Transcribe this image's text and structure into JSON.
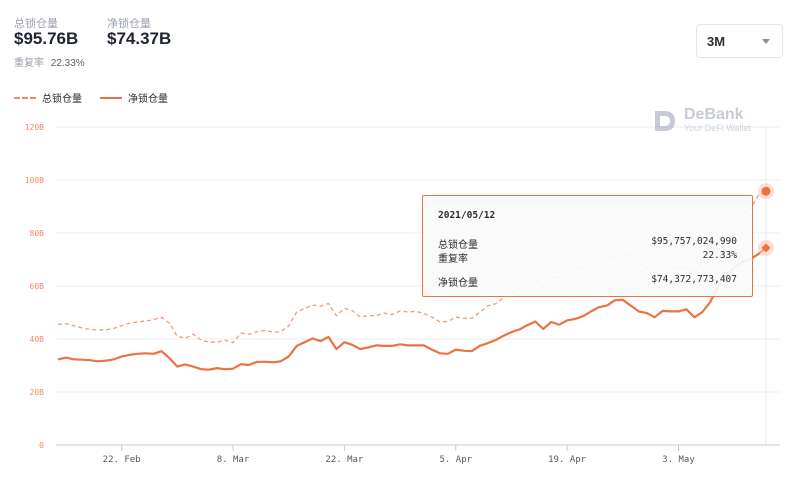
{
  "header": {
    "total_label": "总锁仓量",
    "total_value": "$95.76B",
    "net_label": "净锁仓量",
    "net_value": "$74.37B",
    "dup_label": "重复率",
    "dup_value": "22.33%"
  },
  "range_select": {
    "value": "3M",
    "icon": "chevron-down-icon"
  },
  "logo": {
    "name": "DeBank",
    "tagline": "Your DeFi Wallet"
  },
  "tooltip": {
    "date": "2021/05/12",
    "total_label": "总锁仓量",
    "total_value": "$95,757,024,990",
    "dup_label": "重复率",
    "dup_value": "22.33%",
    "net_label": "净锁仓量",
    "net_value": "$74,372,773,407"
  },
  "colors": {
    "accent": "#ea7243",
    "accent_light": "#ef8a66",
    "grid": "#eceef2",
    "tick": "#ef8a66"
  },
  "chart_data": {
    "type": "line",
    "ylim": [
      0,
      120
    ],
    "yticks": [
      0,
      20,
      40,
      60,
      80,
      100,
      120
    ],
    "ytick_labels": [
      "0",
      "20B",
      "40B",
      "60B",
      "80B",
      "100B",
      "120B"
    ],
    "x_ticks": [
      {
        "label": "22. Feb",
        "day": 15
      },
      {
        "label": "8. Mar",
        "day": 29
      },
      {
        "label": "22. Mar",
        "day": 43
      },
      {
        "label": "5. Apr",
        "day": 57
      },
      {
        "label": "19. Apr",
        "day": 71
      },
      {
        "label": "3. May",
        "day": 85
      }
    ],
    "x_range": [
      7,
      96
    ],
    "series": [
      {
        "name": "总锁仓量",
        "style": "dashed",
        "points": [
          [
            7,
            45.5
          ],
          [
            8,
            45.8
          ],
          [
            9,
            45
          ],
          [
            10,
            44.2
          ],
          [
            11,
            43.6
          ],
          [
            12,
            43.4
          ],
          [
            13,
            43.5
          ],
          [
            14,
            44
          ],
          [
            15,
            45
          ],
          [
            16,
            46
          ],
          [
            17,
            46.4
          ],
          [
            18,
            46.8
          ],
          [
            19,
            47.3
          ],
          [
            20,
            48.2
          ],
          [
            21,
            46
          ],
          [
            22,
            41
          ],
          [
            23,
            40.3
          ],
          [
            24,
            41.8
          ],
          [
            25,
            39.6
          ],
          [
            26,
            38.8
          ],
          [
            27,
            38.8
          ],
          [
            28,
            39.6
          ],
          [
            29,
            38.6
          ],
          [
            30,
            42.2
          ],
          [
            31,
            41.8
          ],
          [
            32,
            42.8
          ],
          [
            33,
            43.2
          ],
          [
            34,
            42.6
          ],
          [
            35,
            42.7
          ],
          [
            36,
            45
          ],
          [
            37,
            50.2
          ],
          [
            38,
            51.5
          ],
          [
            39,
            52.8
          ],
          [
            40,
            52.4
          ],
          [
            41,
            53.4
          ],
          [
            42,
            48.8
          ],
          [
            43,
            51.6
          ],
          [
            44,
            50.7
          ],
          [
            45,
            48.3
          ],
          [
            46,
            48.8
          ],
          [
            47,
            48.8
          ],
          [
            48,
            49.8
          ],
          [
            49,
            49.2
          ],
          [
            50,
            50.6
          ],
          [
            51,
            50.2
          ],
          [
            52,
            50.4
          ],
          [
            53,
            49.6
          ],
          [
            54,
            48.3
          ],
          [
            55,
            46.5
          ],
          [
            56,
            46.6
          ],
          [
            57,
            48.3
          ],
          [
            58,
            47.8
          ],
          [
            59,
            47.8
          ],
          [
            60,
            50
          ],
          [
            61,
            52.5
          ],
          [
            62,
            53.3
          ],
          [
            63,
            55.6
          ],
          [
            64,
            57.3
          ],
          [
            65,
            59.3
          ],
          [
            66,
            60.6
          ],
          [
            67,
            62.3
          ],
          [
            68,
            59.8
          ],
          [
            69,
            63.4
          ],
          [
            70,
            63.2
          ],
          [
            71,
            66
          ],
          [
            72,
            66.4
          ],
          [
            73,
            67
          ],
          [
            74,
            68.6
          ],
          [
            75,
            70.2
          ],
          [
            76,
            70.6
          ],
          [
            77,
            71
          ],
          [
            78,
            72
          ],
          [
            79,
            71.5
          ],
          [
            80,
            68.3
          ],
          [
            81,
            66.8
          ],
          [
            82,
            63
          ],
          [
            83,
            66.5
          ],
          [
            84,
            66.5
          ],
          [
            85,
            66.6
          ],
          [
            86,
            67.1
          ],
          [
            87,
            64.8
          ],
          [
            88,
            69
          ],
          [
            89,
            73.4
          ],
          [
            90,
            80
          ],
          [
            91,
            82
          ],
          [
            92,
            85
          ],
          [
            93,
            87
          ],
          [
            94,
            89
          ],
          [
            95,
            94
          ],
          [
            96,
            95.76
          ]
        ]
      },
      {
        "name": "净锁仓量",
        "style": "solid",
        "points": [
          [
            7,
            32.3
          ],
          [
            8,
            33
          ],
          [
            9,
            32.3
          ],
          [
            10,
            32.2
          ],
          [
            11,
            32
          ],
          [
            12,
            31.6
          ],
          [
            13,
            31.8
          ],
          [
            14,
            32.3
          ],
          [
            15,
            33.4
          ],
          [
            16,
            34
          ],
          [
            17,
            34.4
          ],
          [
            18,
            34.6
          ],
          [
            19,
            34.4
          ],
          [
            20,
            35.4
          ],
          [
            21,
            32.8
          ],
          [
            22,
            29.6
          ],
          [
            23,
            30.4
          ],
          [
            24,
            29.6
          ],
          [
            25,
            28.6
          ],
          [
            26,
            28.4
          ],
          [
            27,
            29
          ],
          [
            28,
            28.6
          ],
          [
            29,
            28.8
          ],
          [
            30,
            30.5
          ],
          [
            31,
            30.2
          ],
          [
            32,
            31.4
          ],
          [
            33,
            31.4
          ],
          [
            34,
            31.2
          ],
          [
            35,
            31.6
          ],
          [
            36,
            33.4
          ],
          [
            37,
            37.4
          ],
          [
            38,
            38.8
          ],
          [
            39,
            40.2
          ],
          [
            40,
            39.2
          ],
          [
            41,
            40.8
          ],
          [
            42,
            36.2
          ],
          [
            43,
            38.8
          ],
          [
            44,
            37.8
          ],
          [
            45,
            36.2
          ],
          [
            46,
            36.8
          ],
          [
            47,
            37.6
          ],
          [
            48,
            37.4
          ],
          [
            49,
            37.4
          ],
          [
            50,
            38
          ],
          [
            51,
            37.6
          ],
          [
            52,
            37.6
          ],
          [
            53,
            37.6
          ],
          [
            54,
            36
          ],
          [
            55,
            34.6
          ],
          [
            56,
            34.4
          ],
          [
            57,
            36
          ],
          [
            58,
            35.6
          ],
          [
            59,
            35.4
          ],
          [
            60,
            37.4
          ],
          [
            61,
            38.4
          ],
          [
            62,
            39.6
          ],
          [
            63,
            41.2
          ],
          [
            64,
            42.6
          ],
          [
            65,
            43.6
          ],
          [
            66,
            45.2
          ],
          [
            67,
            46.6
          ],
          [
            68,
            43.8
          ],
          [
            69,
            46.4
          ],
          [
            70,
            45.4
          ],
          [
            71,
            47
          ],
          [
            72,
            47.6
          ],
          [
            73,
            48.6
          ],
          [
            74,
            50.4
          ],
          [
            75,
            52
          ],
          [
            76,
            52.6
          ],
          [
            77,
            54.6
          ],
          [
            78,
            54.8
          ],
          [
            79,
            52.6
          ],
          [
            80,
            50.4
          ],
          [
            81,
            49.8
          ],
          [
            82,
            48.2
          ],
          [
            83,
            50.6
          ],
          [
            84,
            50.4
          ],
          [
            85,
            50.4
          ],
          [
            86,
            51.2
          ],
          [
            87,
            48.2
          ],
          [
            88,
            50.2
          ],
          [
            89,
            54
          ],
          [
            90,
            60
          ],
          [
            91,
            64
          ],
          [
            92,
            67
          ],
          [
            93,
            69
          ],
          [
            94,
            70
          ],
          [
            95,
            72
          ],
          [
            96,
            74.37
          ]
        ]
      }
    ]
  }
}
